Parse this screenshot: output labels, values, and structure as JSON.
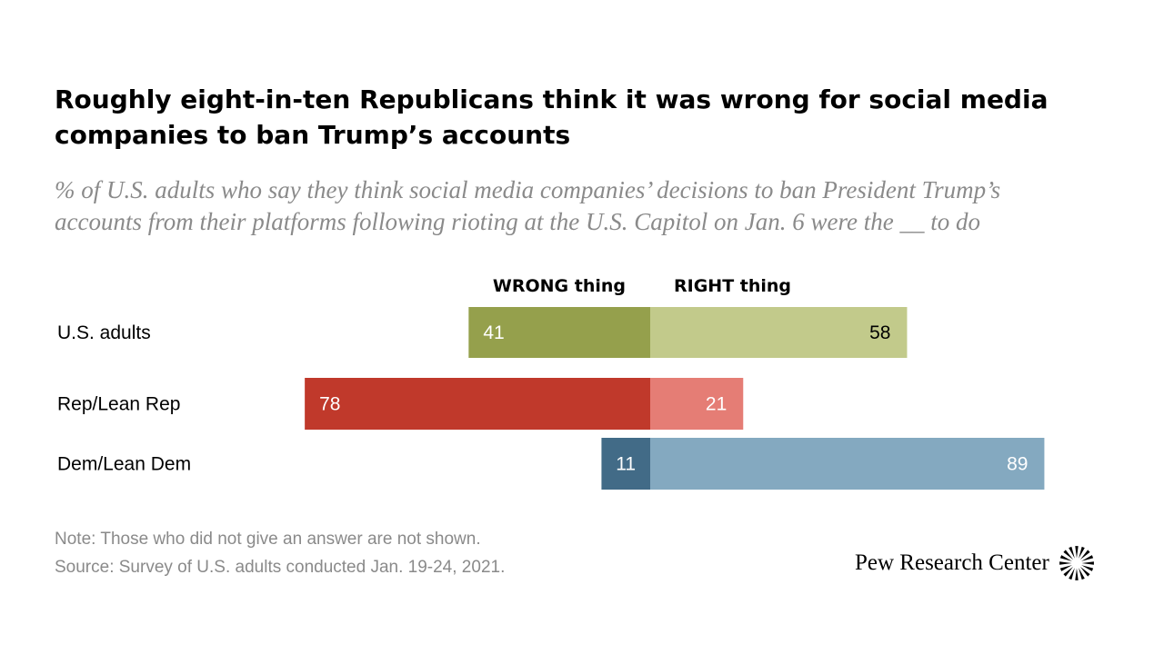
{
  "title": "Roughly eight-in-ten Republicans think it was wrong for social media companies to ban Trump’s accounts",
  "subtitle": "% of U.S. adults who say they think social media companies’ decisions to ban President Trump’s accounts from their platforms following rioting at the U.S. Capitol on Jan. 6 were the __ to do",
  "chart_data": {
    "type": "bar",
    "orientation": "horizontal-diverging",
    "categories": [
      "U.S. adults",
      "Rep/Lean Rep",
      "Dem/Lean Dem"
    ],
    "series": [
      {
        "name": "WRONG thing",
        "values": [
          41,
          78,
          11
        ],
        "colors": [
          "#95a04c",
          "#c0392b",
          "#426b87"
        ],
        "label_colors": [
          "#ffffff",
          "#ffffff",
          "#ffffff"
        ]
      },
      {
        "name": "RIGHT thing",
        "values": [
          58,
          21,
          89
        ],
        "colors": [
          "#c2ca8b",
          "#e57d75",
          "#84a9c0"
        ],
        "label_colors": [
          "#000000",
          "#ffffff",
          "#ffffff"
        ]
      }
    ],
    "xlim": [
      -100,
      100
    ]
  },
  "notes": {
    "note": "Note: Those who did not give an answer are not shown.",
    "source": "Source: Survey of U.S. adults conducted Jan. 19-24, 2021."
  },
  "brand": {
    "name": "Pew Research Center",
    "logo_icon": "pew-sunburst-icon"
  }
}
